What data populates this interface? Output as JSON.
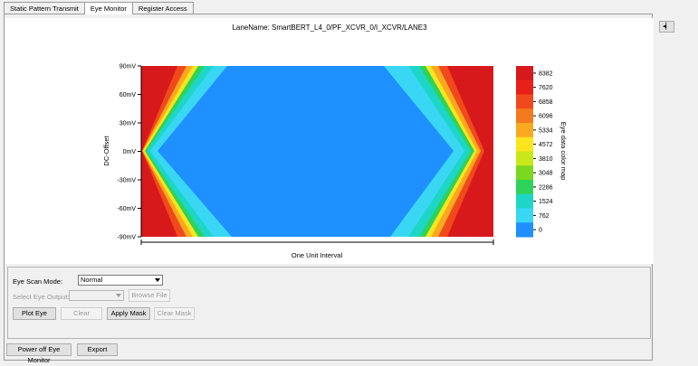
{
  "tabs": [
    {
      "label": "Static Pattern Transmit",
      "active": false
    },
    {
      "label": "Eye Monitor",
      "active": true
    },
    {
      "label": "Register Access",
      "active": false
    }
  ],
  "side_button": {
    "icon": "pin-icon"
  },
  "chart_data": {
    "type": "heatmap",
    "title": "LaneName: SmartBERT_L4_0/PF_XCVR_0/I_XCVR/LANE3",
    "xlabel": "One Unit Interval",
    "ylabel": "DC-Offset",
    "y_ticks": [
      "90mV",
      "60mV",
      "30mV",
      "0mV",
      "-30mV",
      "-60mV",
      "-90mV"
    ],
    "colorbar_label": "Eye data color map",
    "colorbar_ticks": [
      "8382",
      "7620",
      "6858",
      "6096",
      "5334",
      "4572",
      "3810",
      "3048",
      "2286",
      "1524",
      "762",
      "0"
    ],
    "colorbar_colors": [
      "#d7191c",
      "#e8201a",
      "#f04a1c",
      "#f47a1e",
      "#f9a91f",
      "#fbe51c",
      "#c9e81a",
      "#7ad81e",
      "#2ed35a",
      "#1ed6c8",
      "#3ad7f5",
      "#1e90ff"
    ],
    "grid": false
  },
  "controls": {
    "eye_scan_mode_label": "Eye Scan Mode:",
    "eye_scan_mode_value": "Normal",
    "select_eye_output_label": "Select Eye Output:",
    "select_eye_output_value": "",
    "browse_file": "Browse File",
    "plot_eye": "Plot Eye",
    "clear": "Clear",
    "apply_mask": "Apply Mask",
    "clear_mask": "Clear Mask"
  },
  "footer": {
    "power_off": "Power off Eye Monitor",
    "export": "Export"
  }
}
